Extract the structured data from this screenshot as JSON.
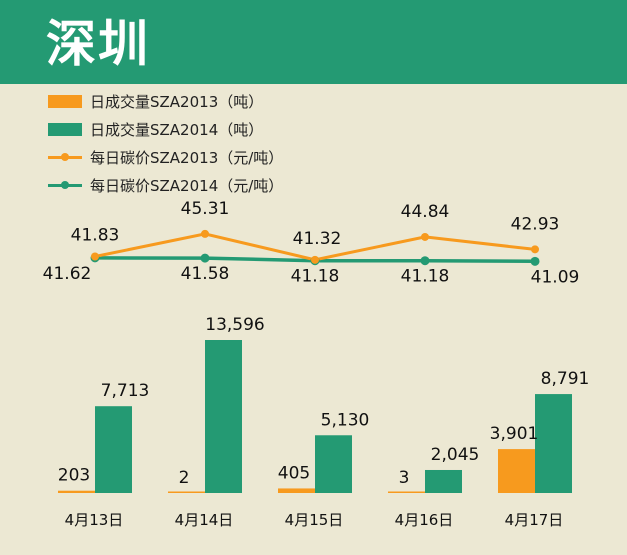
{
  "header": {
    "title": "深圳"
  },
  "colors": {
    "header_bg": "#249a73",
    "background": "#ece8d3",
    "orange": "#f79a1e",
    "green": "#249a73"
  },
  "legend": [
    {
      "label": "日成交量SZA2013（吨）",
      "kind": "bar",
      "color": "#f79a1e"
    },
    {
      "label": "日成交量SZA2014（吨）",
      "kind": "bar",
      "color": "#249a73"
    },
    {
      "label": "每日碳价SZA2013（元/吨）",
      "kind": "line",
      "color": "#f79a1e"
    },
    {
      "label": "每日碳价SZA2014（元/吨）",
      "kind": "line",
      "color": "#249a73"
    }
  ],
  "chart_data": [
    {
      "type": "line",
      "categories": [
        "4月13日",
        "4月14日",
        "4月15日",
        "4月16日",
        "4月17日"
      ],
      "series": [
        {
          "name": "每日碳价SZA2013（元/吨）",
          "values": [
            41.83,
            45.31,
            41.32,
            44.84,
            42.93
          ],
          "labels": [
            "41.83",
            "45.31",
            "41.32",
            "44.84",
            "42.93"
          ]
        },
        {
          "name": "每日碳价SZA2014（元/吨）",
          "values": [
            41.62,
            41.58,
            41.18,
            41.18,
            41.09
          ],
          "labels": [
            "41.62",
            "41.58",
            "41.18",
            "41.18",
            "41.09"
          ]
        }
      ]
    },
    {
      "type": "bar",
      "categories": [
        "4月13日",
        "4月14日",
        "4月15日",
        "4月16日",
        "4月17日"
      ],
      "series": [
        {
          "name": "日成交量SZA2013（吨）",
          "values": [
            203,
            2,
            405,
            3,
            3901
          ],
          "labels": [
            "203",
            "2",
            "405",
            "3",
            "3,901"
          ]
        },
        {
          "name": "日成交量SZA2014（吨）",
          "values": [
            7713,
            13596,
            5130,
            2045,
            8791
          ],
          "labels": [
            "7,713",
            "13,596",
            "5,130",
            "2,045",
            "8,791"
          ]
        }
      ]
    }
  ]
}
